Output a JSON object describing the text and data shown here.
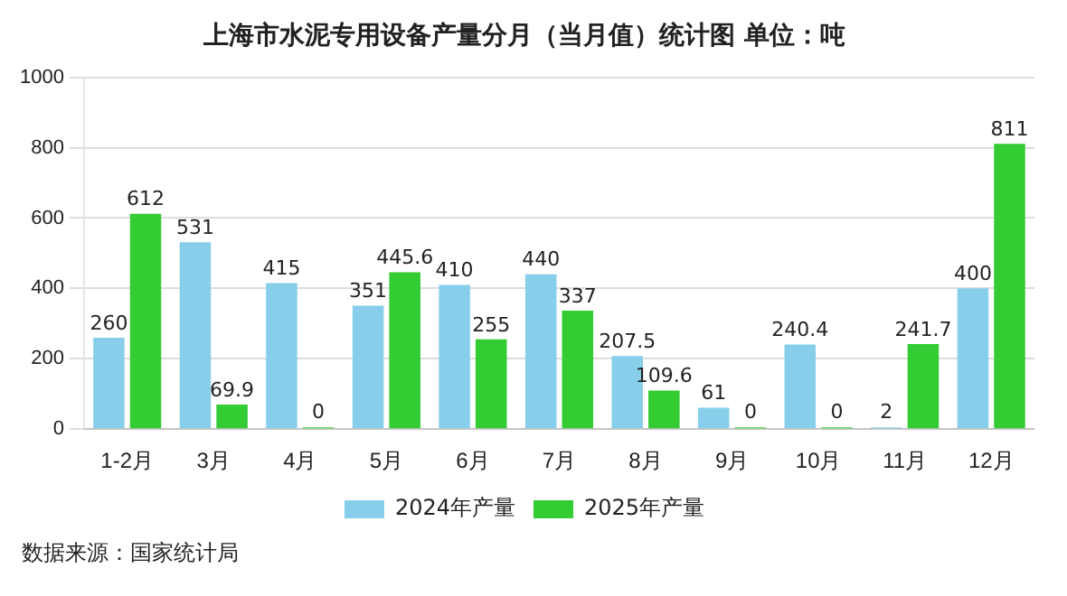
{
  "chart_data": {
    "type": "bar",
    "title": "上海市水泥专用设备产量分月（当月值）统计图 单位：吨",
    "categories": [
      "1-2月",
      "3月",
      "4月",
      "5月",
      "6月",
      "7月",
      "8月",
      "9月",
      "10月",
      "11月",
      "12月"
    ],
    "series": [
      {
        "name": "2024年产量",
        "color": "#87ceeb",
        "values": [
          260,
          531,
          415,
          351,
          410,
          440,
          207.5,
          61,
          240.4,
          2,
          400
        ]
      },
      {
        "name": "2025年产量",
        "color": "#33cc33",
        "values": [
          612,
          69.9,
          0,
          445.6,
          255,
          337,
          109.6,
          0,
          0,
          241.7,
          811
        ]
      }
    ],
    "ylim": [
      0,
      1000
    ],
    "yticks": [
      0,
      200,
      400,
      600,
      800,
      1000
    ],
    "grid": "y",
    "legend": "bottom",
    "data_labels": true,
    "annotations": [
      "数据来源：国家统计局"
    ]
  }
}
